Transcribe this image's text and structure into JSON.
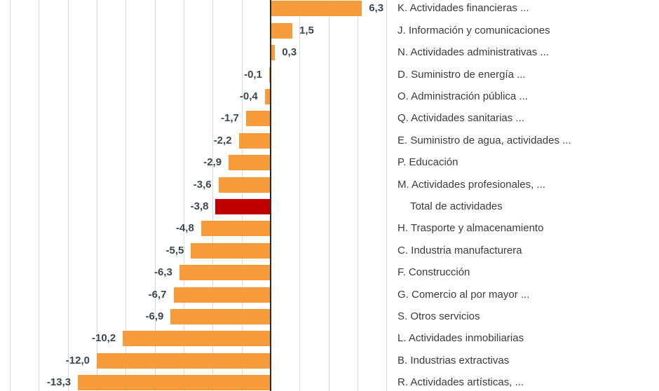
{
  "chart_data": {
    "type": "bar",
    "orientation": "horizontal",
    "title": "",
    "xlabel": "",
    "ylabel": "",
    "legend": "none",
    "grid": "vertical",
    "categories": [
      "K. Actividades financieras ...",
      "J. Información y comunicaciones",
      "N. Actividades administrativas ...",
      "D. Suministro de energía ...",
      "O. Administración pública ...",
      "Q. Actividades sanitarias ...",
      "E. Suministro de agua, actividades ...",
      "P. Educación",
      "M. Actividades profesionales, ...",
      "Total de actividades",
      "H. Trasporte y almacenamiento",
      "C. Industria manufacturera",
      "F. Construcción",
      "G. Comercio al por mayor ...",
      "S. Otros servicios",
      "L. Actividades inmobiliarias",
      "B. Industrias extractivas",
      "R. Actividades artísticas, ..."
    ],
    "values": [
      6.3,
      1.5,
      0.3,
      -0.1,
      -0.4,
      -1.7,
      -2.2,
      -2.9,
      -3.6,
      -3.8,
      -4.8,
      -5.5,
      -6.3,
      -6.7,
      -6.9,
      -10.2,
      -12.0,
      -13.3
    ],
    "value_labels": [
      "6,3",
      "1,5",
      "0,3",
      "-0,1",
      "-0,4",
      "-1,7",
      "-2,2",
      "-2,9",
      "-3,6",
      "-3,8",
      "-4,8",
      "-5,5",
      "-6,3",
      "-6,7",
      "-6,9",
      "-10,2",
      "-12,0",
      "-13,3"
    ],
    "highlight_index": 9,
    "colors": {
      "bar_default": "#F89B3B",
      "bar_highlight": "#C00000",
      "gridline": "#D9D9D9",
      "zero_axis": "#2B2B2B",
      "value_label_text": "#3E4651",
      "category_label_text": "#3B3B3B"
    },
    "axis": {
      "xmin": -18,
      "xmax": 8,
      "grid_step": 2
    }
  }
}
